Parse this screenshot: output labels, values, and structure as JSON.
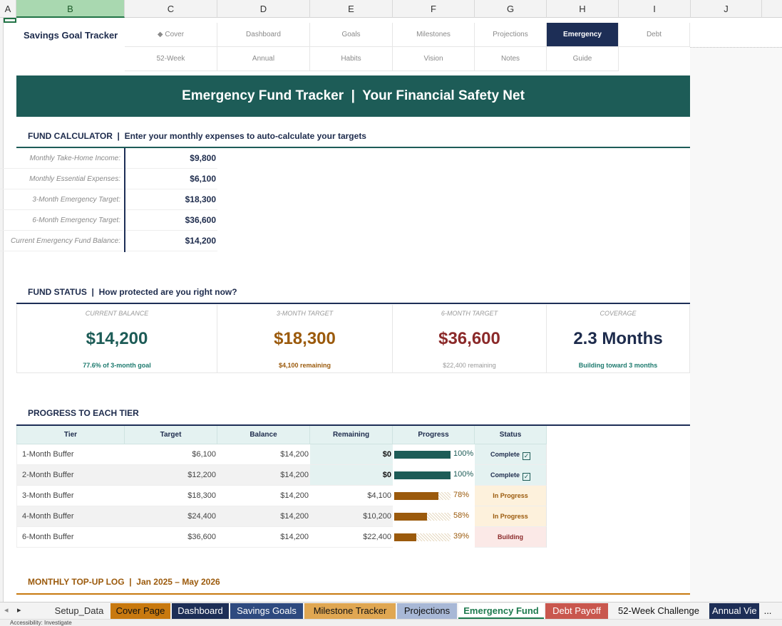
{
  "columns": [
    "A",
    "B",
    "C",
    "D",
    "E",
    "F",
    "G",
    "H",
    "I",
    "J"
  ],
  "app_title": "Savings Goal Tracker",
  "nav_row1": [
    "◆ Cover",
    "Dashboard",
    "Goals",
    "Milestones",
    "Projections",
    "Emergency",
    "Debt"
  ],
  "nav_row2": [
    "52-Week",
    "Annual",
    "Habits",
    "Vision",
    "Notes",
    "Guide"
  ],
  "banner": "Emergency Fund Tracker  |  Your Financial Safety Net",
  "calculator": {
    "heading": "FUND CALCULATOR  |  Enter your monthly expenses to auto-calculate your targets",
    "rows": [
      {
        "label": "Monthly Take-Home Income:",
        "value": "$9,800"
      },
      {
        "label": "Monthly Essential Expenses:",
        "value": "$6,100"
      },
      {
        "label": "3-Month Emergency Target:",
        "value": "$18,300"
      },
      {
        "label": "6-Month Emergency Target:",
        "value": "$36,600"
      },
      {
        "label": "Current Emergency Fund Balance:",
        "value": "$14,200"
      }
    ]
  },
  "status": {
    "heading": "FUND STATUS  |  How protected are you right now?",
    "cards": [
      {
        "label": "CURRENT BALANCE",
        "value": "$14,200",
        "sub": "77.6% of 3-month goal"
      },
      {
        "label": "3-MONTH TARGET",
        "value": "$18,300",
        "sub": "$4,100 remaining"
      },
      {
        "label": "6-MONTH TARGET",
        "value": "$36,600",
        "sub": "$22,400 remaining"
      },
      {
        "label": "COVERAGE",
        "value": "2.3 Months",
        "sub": "Building toward 3 months"
      }
    ]
  },
  "progress": {
    "heading": "PROGRESS TO EACH TIER",
    "headers": [
      "Tier",
      "Target",
      "Balance",
      "Remaining",
      "Progress",
      "Status"
    ],
    "rows": [
      {
        "tier": "1-Month Buffer",
        "target": "$6,100",
        "balance": "$14,200",
        "remaining": "$0",
        "progress": 1.0,
        "pct": "100%",
        "status": "Complete"
      },
      {
        "tier": "2-Month Buffer",
        "target": "$12,200",
        "balance": "$14,200",
        "remaining": "$0",
        "progress": 1.0,
        "pct": "100%",
        "status": "Complete"
      },
      {
        "tier": "3-Month Buffer",
        "target": "$18,300",
        "balance": "$14,200",
        "remaining": "$4,100",
        "progress": 0.78,
        "pct": "78%",
        "status": "In Progress"
      },
      {
        "tier": "4-Month Buffer",
        "target": "$24,400",
        "balance": "$14,200",
        "remaining": "$10,200",
        "progress": 0.58,
        "pct": "58%",
        "status": "In Progress"
      },
      {
        "tier": "6-Month Buffer",
        "target": "$36,600",
        "balance": "$14,200",
        "remaining": "$22,400",
        "progress": 0.39,
        "pct": "39%",
        "status": "Building"
      }
    ]
  },
  "log": {
    "heading": "MONTHLY TOP-UP LOG  |  Jan 2025 – May 2026"
  },
  "tabs": [
    "Setup_Data",
    "Cover Page",
    "Dashboard",
    "Savings Goals",
    "Milestone Tracker",
    "Projections",
    "Emergency Fund",
    "Debt Payoff",
    "52-Week Challenge",
    "Annual Vie"
  ],
  "tab_more": "...",
  "status_bar": "Accessibility: Investigate",
  "colors": {
    "teal": "#1d5c57",
    "navy": "#1d2e56",
    "gold": "#9b5a0c",
    "red": "#8b2a2a",
    "orange": "#c8790f"
  }
}
